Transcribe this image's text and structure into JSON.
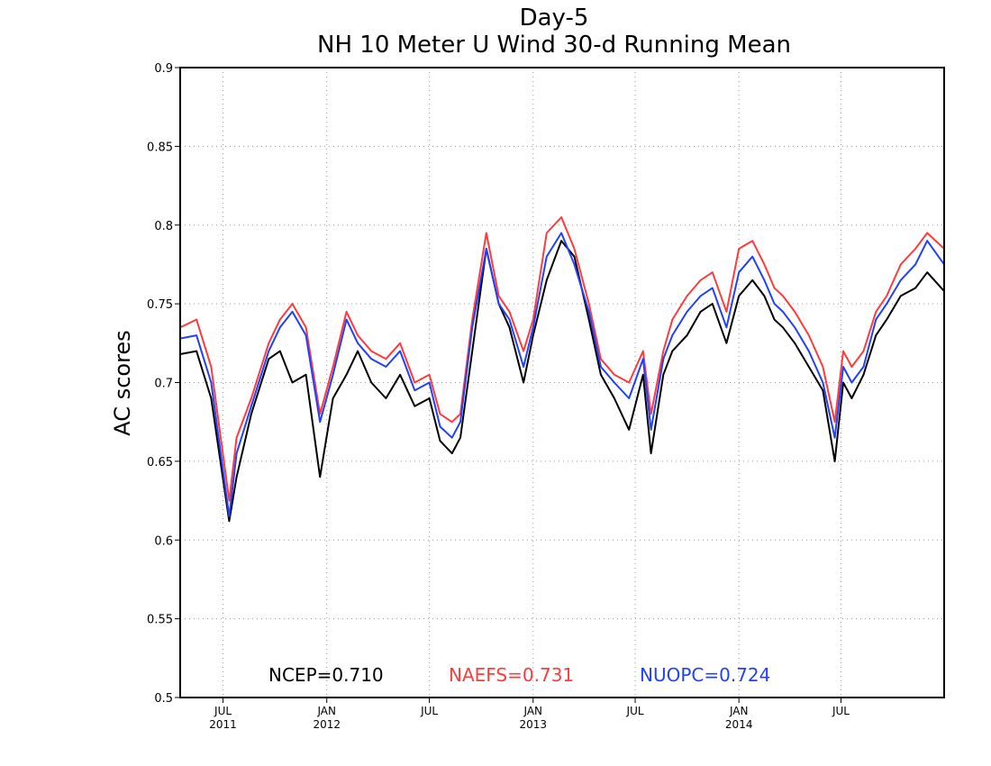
{
  "chart_data": {
    "type": "line",
    "title": "Day-5",
    "subtitle": "NH 10 Meter U Wind 30-d Running Mean",
    "ylabel": "AC scores",
    "xlabel": "",
    "ylim": [
      0.5,
      0.9
    ],
    "yticks": [
      0.5,
      0.55,
      0.6,
      0.65,
      0.7,
      0.75,
      0.8,
      0.85,
      0.9
    ],
    "ytick_labels": [
      "0.5",
      "0.55",
      "0.6",
      "0.65",
      "0.7",
      "0.75",
      "0.8",
      "0.85",
      "0.9"
    ],
    "xlim": [
      "2011-04-16",
      "2014-12-31"
    ],
    "xticks": [
      {
        "date": "2011-07-01",
        "label": "JUL",
        "sub": "2011"
      },
      {
        "date": "2012-01-01",
        "label": "JAN",
        "sub": "2012"
      },
      {
        "date": "2012-07-01",
        "label": "JUL",
        "sub": ""
      },
      {
        "date": "2013-01-01",
        "label": "JAN",
        "sub": "2013"
      },
      {
        "date": "2013-07-01",
        "label": "JUL",
        "sub": ""
      },
      {
        "date": "2014-01-01",
        "label": "JAN",
        "sub": "2014"
      },
      {
        "date": "2014-07-01",
        "label": "JUL",
        "sub": ""
      }
    ],
    "grid": true,
    "legend_position": "bottom",
    "series": [
      {
        "name": "NCEP",
        "mean": "0.710",
        "color": "#000000",
        "x": [
          "2011-04-16",
          "2011-05-15",
          "2011-06-10",
          "2011-07-12",
          "2011-07-25",
          "2011-08-20",
          "2011-09-20",
          "2011-10-10",
          "2011-11-01",
          "2011-11-25",
          "2011-12-20",
          "2012-01-12",
          "2012-02-05",
          "2012-02-25",
          "2012-03-20",
          "2012-04-15",
          "2012-05-10",
          "2012-06-05",
          "2012-07-01",
          "2012-07-20",
          "2012-08-10",
          "2012-08-25",
          "2012-09-15",
          "2012-10-10",
          "2012-11-01",
          "2012-11-20",
          "2012-12-15",
          "2013-01-01",
          "2013-01-25",
          "2013-02-20",
          "2013-03-15",
          "2013-04-10",
          "2013-05-01",
          "2013-05-25",
          "2013-06-20",
          "2013-07-15",
          "2013-07-29",
          "2013-08-20",
          "2013-09-05",
          "2013-10-01",
          "2013-10-25",
          "2013-11-15",
          "2013-12-10",
          "2014-01-01",
          "2014-01-25",
          "2014-02-15",
          "2014-03-05",
          "2014-03-20",
          "2014-04-10",
          "2014-05-05",
          "2014-05-30",
          "2014-06-20",
          "2014-07-05",
          "2014-07-20",
          "2014-08-10",
          "2014-09-01",
          "2014-09-20",
          "2014-10-15",
          "2014-11-10",
          "2014-12-01",
          "2014-12-31"
        ],
        "y": [
          0.718,
          0.72,
          0.69,
          0.612,
          0.64,
          0.68,
          0.715,
          0.72,
          0.7,
          0.705,
          0.64,
          0.69,
          0.705,
          0.72,
          0.7,
          0.69,
          0.705,
          0.685,
          0.69,
          0.663,
          0.655,
          0.665,
          0.72,
          0.785,
          0.75,
          0.735,
          0.7,
          0.73,
          0.765,
          0.79,
          0.78,
          0.74,
          0.705,
          0.69,
          0.67,
          0.705,
          0.655,
          0.705,
          0.72,
          0.73,
          0.745,
          0.75,
          0.725,
          0.755,
          0.765,
          0.755,
          0.74,
          0.735,
          0.725,
          0.71,
          0.695,
          0.65,
          0.7,
          0.69,
          0.705,
          0.73,
          0.74,
          0.755,
          0.76,
          0.77,
          0.758
        ]
      },
      {
        "name": "NAEFS",
        "mean": "0.731",
        "color": "#ff3b3b",
        "x": [
          "2011-04-16",
          "2011-05-15",
          "2011-06-10",
          "2011-07-12",
          "2011-07-25",
          "2011-08-20",
          "2011-09-20",
          "2011-10-10",
          "2011-11-01",
          "2011-11-25",
          "2011-12-20",
          "2012-01-12",
          "2012-02-05",
          "2012-02-25",
          "2012-03-20",
          "2012-04-15",
          "2012-05-10",
          "2012-06-05",
          "2012-07-01",
          "2012-07-20",
          "2012-08-10",
          "2012-08-25",
          "2012-09-15",
          "2012-10-10",
          "2012-11-01",
          "2012-11-20",
          "2012-12-15",
          "2013-01-01",
          "2013-01-25",
          "2013-02-20",
          "2013-03-15",
          "2013-04-10",
          "2013-05-01",
          "2013-05-25",
          "2013-06-20",
          "2013-07-15",
          "2013-07-29",
          "2013-08-20",
          "2013-09-05",
          "2013-10-01",
          "2013-10-25",
          "2013-11-15",
          "2013-12-10",
          "2014-01-01",
          "2014-01-25",
          "2014-02-15",
          "2014-03-05",
          "2014-03-20",
          "2014-04-10",
          "2014-05-05",
          "2014-05-30",
          "2014-06-20",
          "2014-07-05",
          "2014-07-20",
          "2014-08-10",
          "2014-09-01",
          "2014-09-20",
          "2014-10-15",
          "2014-11-10",
          "2014-12-01",
          "2014-12-31"
        ],
        "y": [
          0.735,
          0.74,
          0.71,
          0.625,
          0.665,
          0.69,
          0.725,
          0.74,
          0.75,
          0.735,
          0.68,
          0.71,
          0.745,
          0.73,
          0.72,
          0.715,
          0.725,
          0.7,
          0.705,
          0.68,
          0.675,
          0.68,
          0.74,
          0.795,
          0.755,
          0.745,
          0.72,
          0.74,
          0.795,
          0.805,
          0.785,
          0.75,
          0.715,
          0.705,
          0.7,
          0.72,
          0.68,
          0.72,
          0.74,
          0.755,
          0.765,
          0.77,
          0.745,
          0.785,
          0.79,
          0.775,
          0.76,
          0.755,
          0.745,
          0.73,
          0.71,
          0.675,
          0.72,
          0.71,
          0.72,
          0.745,
          0.755,
          0.775,
          0.785,
          0.795,
          0.785
        ]
      },
      {
        "name": "NUOPC",
        "mean": "0.724",
        "color": "#2040ff",
        "x": [
          "2011-04-16",
          "2011-05-15",
          "2011-06-10",
          "2011-07-12",
          "2011-07-25",
          "2011-08-20",
          "2011-09-20",
          "2011-10-10",
          "2011-11-01",
          "2011-11-25",
          "2011-12-20",
          "2012-01-12",
          "2012-02-05",
          "2012-02-25",
          "2012-03-20",
          "2012-04-15",
          "2012-05-10",
          "2012-06-05",
          "2012-07-01",
          "2012-07-20",
          "2012-08-10",
          "2012-08-25",
          "2012-09-15",
          "2012-10-10",
          "2012-11-01",
          "2012-11-20",
          "2012-12-15",
          "2013-01-01",
          "2013-01-25",
          "2013-02-20",
          "2013-03-15",
          "2013-04-10",
          "2013-05-01",
          "2013-05-25",
          "2013-06-20",
          "2013-07-15",
          "2013-07-29",
          "2013-08-20",
          "2013-09-05",
          "2013-10-01",
          "2013-10-25",
          "2013-11-15",
          "2013-12-10",
          "2014-01-01",
          "2014-01-25",
          "2014-02-15",
          "2014-03-05",
          "2014-03-20",
          "2014-04-10",
          "2014-05-05",
          "2014-05-30",
          "2014-06-20",
          "2014-07-05",
          "2014-07-20",
          "2014-08-10",
          "2014-09-01",
          "2014-09-20",
          "2014-10-15",
          "2014-11-10",
          "2014-12-01",
          "2014-12-31"
        ],
        "y": [
          0.728,
          0.73,
          0.7,
          0.615,
          0.655,
          0.685,
          0.72,
          0.735,
          0.745,
          0.73,
          0.675,
          0.705,
          0.74,
          0.725,
          0.715,
          0.71,
          0.72,
          0.695,
          0.7,
          0.672,
          0.665,
          0.675,
          0.735,
          0.785,
          0.75,
          0.74,
          0.71,
          0.735,
          0.78,
          0.795,
          0.775,
          0.745,
          0.71,
          0.7,
          0.69,
          0.715,
          0.67,
          0.715,
          0.73,
          0.745,
          0.755,
          0.76,
          0.735,
          0.77,
          0.78,
          0.765,
          0.75,
          0.745,
          0.735,
          0.72,
          0.7,
          0.665,
          0.71,
          0.7,
          0.71,
          0.74,
          0.75,
          0.765,
          0.775,
          0.79,
          0.775
        ]
      }
    ]
  }
}
